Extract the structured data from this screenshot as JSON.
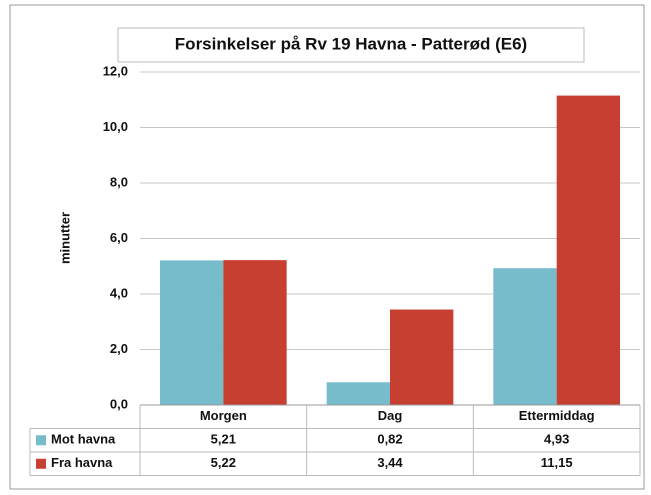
{
  "chart_data": {
    "type": "bar",
    "title": "Forsinkelser på Rv 19 Havna - Patterød (E6)",
    "y_label": "minutter",
    "categories": [
      "Morgen",
      "Dag",
      "Ettermiddag"
    ],
    "series": [
      {
        "name": "Mot havna",
        "color": "#77bccb",
        "values": [
          5.21,
          0.82,
          4.93
        ],
        "value_labels": [
          "5,21",
          "0,82",
          "4,93"
        ]
      },
      {
        "name": "Fra havna",
        "color": "#c63f30",
        "values": [
          5.22,
          3.44,
          11.15
        ],
        "value_labels": [
          "5,22",
          "3,44",
          "11,15"
        ]
      }
    ],
    "ylim": [
      0,
      12
    ],
    "yticks": [
      {
        "value": 0,
        "label": "0,0"
      },
      {
        "value": 2,
        "label": "2,0"
      },
      {
        "value": 4,
        "label": "4,0"
      },
      {
        "value": 6,
        "label": "6,0"
      },
      {
        "value": 8,
        "label": "8,0"
      },
      {
        "value": 10,
        "label": "10,0"
      },
      {
        "value": 12,
        "label": "12,0"
      }
    ],
    "grid": true
  }
}
